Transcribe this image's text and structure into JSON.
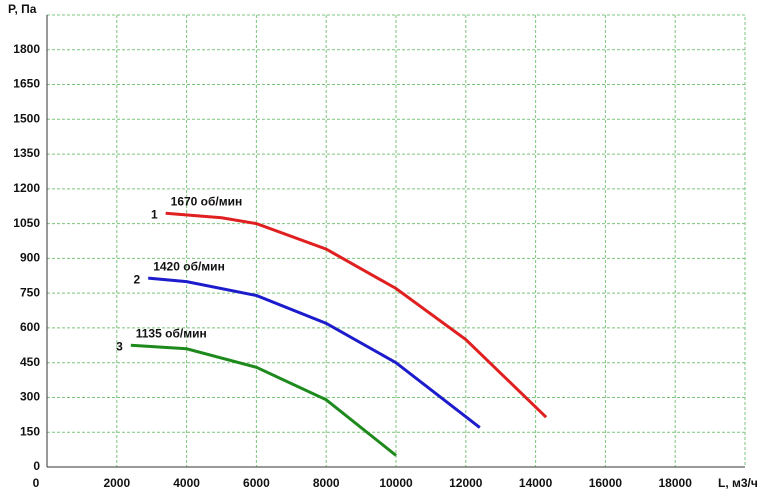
{
  "chart_data": {
    "type": "line",
    "x_label": "L, м3/ч",
    "y_label": "P, Па",
    "xlim": [
      0,
      20000
    ],
    "ylim": [
      0,
      1950
    ],
    "xticks": [
      0,
      2000,
      4000,
      6000,
      8000,
      10000,
      12000,
      14000,
      16000,
      18000
    ],
    "yticks": [
      0,
      150,
      300,
      450,
      600,
      750,
      900,
      1050,
      1200,
      1350,
      1500,
      1650,
      1800
    ],
    "grid": true,
    "grid_color": "#7cc47c",
    "series": [
      {
        "name": "1",
        "annotation": "1670 об/мин",
        "color": "#e02020",
        "x": [
          3400,
          5000,
          6000,
          8000,
          10000,
          12000,
          14300
        ],
        "values": [
          1095,
          1075,
          1050,
          940,
          770,
          550,
          215
        ]
      },
      {
        "name": "2",
        "annotation": "1420 об/мин",
        "color": "#1c1ccc",
        "x": [
          2900,
          4000,
          6000,
          8000,
          10000,
          12400
        ],
        "values": [
          815,
          800,
          740,
          620,
          450,
          170
        ]
      },
      {
        "name": "3",
        "annotation": "1135 об/мин",
        "color": "#1e8a1e",
        "x": [
          2400,
          4000,
          6000,
          8000,
          10000
        ],
        "values": [
          525,
          510,
          430,
          290,
          50
        ]
      }
    ]
  }
}
